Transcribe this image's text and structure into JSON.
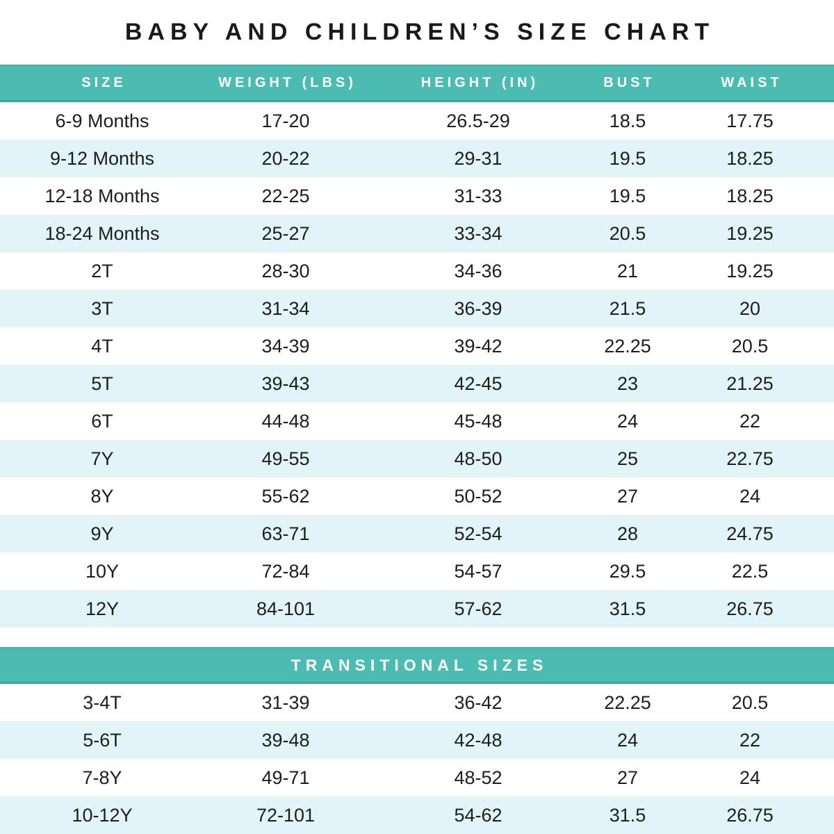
{
  "page": {
    "title": "BABY AND CHILDREN’S SIZE CHART"
  },
  "colors": {
    "teal": "#4CBCB2",
    "teal_border_dark": "#35A79D",
    "row_alt_blue": "#E2F4F8",
    "row_white": "#FFFFFF",
    "header_text": "#FFFFFF",
    "body_text": "#1D1D1D",
    "title_text": "#1A1A1A"
  },
  "chart_data": {
    "type": "table",
    "title": "BABY AND CHILDREN’S SIZE CHART",
    "columns": [
      "SIZE",
      "WEIGHT (LBS)",
      "HEIGHT (IN)",
      "BUST",
      "WAIST"
    ],
    "rows": [
      [
        "6-9 Months",
        "17-20",
        "26.5-29",
        "18.5",
        "17.75"
      ],
      [
        "9-12 Months",
        "20-22",
        "29-31",
        "19.5",
        "18.25"
      ],
      [
        "12-18 Months",
        "22-25",
        "31-33",
        "19.5",
        "18.25"
      ],
      [
        "18-24 Months",
        "25-27",
        "33-34",
        "20.5",
        "19.25"
      ],
      [
        "2T",
        "28-30",
        "34-36",
        "21",
        "19.25"
      ],
      [
        "3T",
        "31-34",
        "36-39",
        "21.5",
        "20"
      ],
      [
        "4T",
        "34-39",
        "39-42",
        "22.25",
        "20.5"
      ],
      [
        "5T",
        "39-43",
        "42-45",
        "23",
        "21.25"
      ],
      [
        "6T",
        "44-48",
        "45-48",
        "24",
        "22"
      ],
      [
        "7Y",
        "49-55",
        "48-50",
        "25",
        "22.75"
      ],
      [
        "8Y",
        "55-62",
        "50-52",
        "27",
        "24"
      ],
      [
        "9Y",
        "63-71",
        "52-54",
        "28",
        "24.75"
      ],
      [
        "10Y",
        "72-84",
        "54-57",
        "29.5",
        "22.5"
      ],
      [
        "12Y",
        "84-101",
        "57-62",
        "31.5",
        "26.75"
      ]
    ],
    "sections": [
      {
        "title": "TRANSITIONAL SIZES",
        "rows": [
          [
            "3-4T",
            "31-39",
            "36-42",
            "22.25",
            "20.5"
          ],
          [
            "5-6T",
            "39-48",
            "42-48",
            "24",
            "22"
          ],
          [
            "7-8Y",
            "49-71",
            "48-52",
            "27",
            "24"
          ],
          [
            "10-12Y",
            "72-101",
            "54-62",
            "31.5",
            "26.75"
          ]
        ]
      }
    ]
  }
}
